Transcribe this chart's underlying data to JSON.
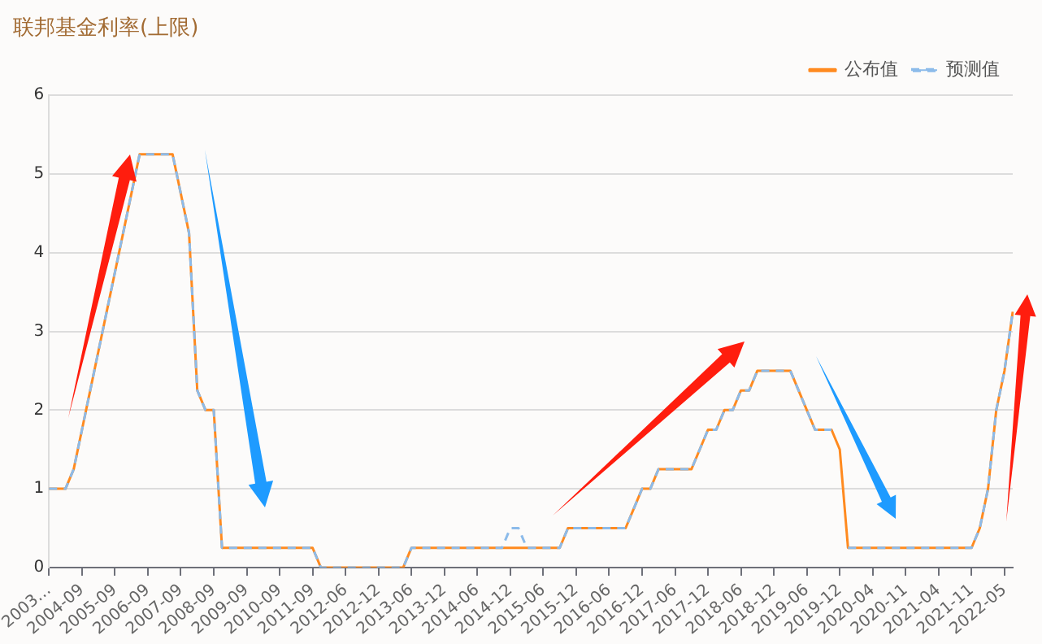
{
  "chart_data": {
    "type": "line",
    "title": "联邦基金利率(上限)",
    "categories": [
      "2003…",
      null,
      null,
      null,
      "2004-09",
      null,
      null,
      null,
      "2005-09",
      null,
      null,
      null,
      "2006-09",
      null,
      null,
      null,
      "2007-09",
      null,
      null,
      null,
      "2008-09",
      null,
      null,
      null,
      "2009-09",
      null,
      null,
      null,
      "2010-09",
      null,
      null,
      null,
      "2011-09",
      null,
      null,
      null,
      "2012-06",
      null,
      null,
      null,
      "2012-12",
      null,
      null,
      null,
      "2013-06",
      null,
      null,
      null,
      "2013-12",
      null,
      null,
      null,
      "2014-06",
      null,
      null,
      null,
      "2014-12",
      null,
      null,
      null,
      "2015-06",
      null,
      null,
      null,
      "2015-12",
      null,
      null,
      null,
      "2016-06",
      null,
      null,
      null,
      "2016-12",
      null,
      null,
      null,
      "2017-06",
      null,
      null,
      null,
      "2017-12",
      null,
      null,
      null,
      "2018-06",
      null,
      null,
      null,
      "2018-12",
      null,
      null,
      null,
      "2019-06",
      null,
      null,
      null,
      "2019-12",
      null,
      null,
      null,
      "2020-04",
      null,
      null,
      null,
      "2020-11",
      null,
      null,
      null,
      "2021-04",
      null,
      null,
      null,
      "2021-11",
      null,
      null,
      null,
      "2022-05",
      null
    ],
    "series": [
      {
        "name": "公布值",
        "color": "#ff8a1f",
        "line_style": "solid",
        "values": [
          1,
          1,
          1,
          1.25,
          1.75,
          2.25,
          2.75,
          3.25,
          3.75,
          4.25,
          4.75,
          5.25,
          5.25,
          5.25,
          5.25,
          5.25,
          4.75,
          4.25,
          2.25,
          2,
          2,
          0.25,
          0.25,
          0.25,
          0.25,
          0.25,
          0.25,
          0.25,
          0.25,
          0.25,
          0.25,
          0.25,
          0.25,
          0,
          0,
          0,
          0,
          0,
          0,
          0,
          0,
          0,
          0,
          0,
          0.25,
          0.25,
          0.25,
          0.25,
          0.25,
          0.25,
          0.25,
          0.25,
          0.25,
          0.25,
          0.25,
          0.25,
          0.25,
          0.25,
          0.25,
          0.25,
          0.25,
          0.25,
          0.25,
          0.5,
          0.5,
          0.5,
          0.5,
          0.5,
          0.5,
          0.5,
          0.5,
          0.75,
          1,
          1,
          1.25,
          1.25,
          1.25,
          1.25,
          1.25,
          1.5,
          1.75,
          1.75,
          2,
          2,
          2.25,
          2.25,
          2.5,
          2.5,
          2.5,
          2.5,
          2.5,
          2.25,
          2,
          1.75,
          1.75,
          1.75,
          1.5,
          0.25,
          0.25,
          0.25,
          0.25,
          0.25,
          0.25,
          0.25,
          0.25,
          0.25,
          0.25,
          0.25,
          0.25,
          0.25,
          0.25,
          0.25,
          0.25,
          0.5,
          1,
          2,
          2.5,
          3.25
        ]
      },
      {
        "name": "预测值",
        "color": "#8cbbea",
        "line_style": "dashed",
        "values": [
          1,
          1,
          1,
          1.25,
          1.75,
          2.25,
          2.75,
          3.25,
          3.75,
          4.25,
          4.75,
          5.25,
          5.25,
          5.25,
          5.25,
          5.25,
          4.75,
          4.25,
          2.25,
          2,
          2,
          0.25,
          0.25,
          0.25,
          0.25,
          0.25,
          0.25,
          0.25,
          0.25,
          0.25,
          0.25,
          0.25,
          0.25,
          0,
          0,
          0,
          0,
          0,
          0,
          0,
          0,
          0,
          0,
          0,
          0.25,
          0.25,
          0.25,
          0.25,
          0.25,
          0.25,
          0.25,
          0.25,
          0.25,
          0.25,
          0.25,
          0.25,
          0.5,
          0.5,
          0.25,
          0.25,
          0.25,
          0.25,
          0.25,
          0.5,
          0.5,
          0.5,
          0.5,
          0.5,
          0.5,
          0.5,
          0.5,
          0.75,
          1,
          1,
          1.25,
          1.25,
          1.25,
          1.25,
          1.25,
          1.5,
          1.75,
          1.75,
          2,
          2,
          2.25,
          2.25,
          2.5,
          2.5,
          2.5,
          2.5,
          2.5,
          2.25,
          2,
          1.75,
          1.75,
          1.75,
          null,
          0.25,
          0.25,
          0.25,
          0.25,
          0.25,
          0.25,
          0.25,
          0.25,
          0.25,
          0.25,
          0.25,
          0.25,
          0.25,
          0.25,
          0.25,
          0.25,
          0.5,
          1,
          2,
          2.5,
          3.25
        ]
      }
    ],
    "ylim": [
      0,
      6
    ],
    "yticks": [
      0,
      1,
      2,
      3,
      4,
      5,
      6
    ],
    "grid": "y",
    "legend": "top right",
    "marker": "none"
  }
}
